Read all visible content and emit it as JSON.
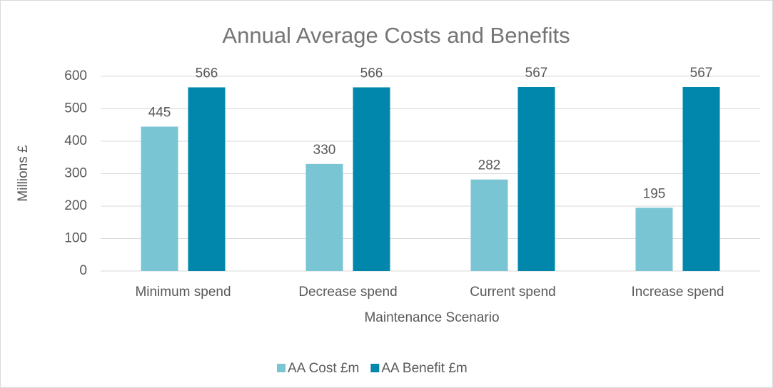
{
  "chart_data": {
    "type": "bar",
    "title": "Annual Average Costs and Benefits",
    "x_label": "Maintenance Scenario",
    "y_label": "Millions £",
    "categories": [
      "Minimum spend",
      "Decrease spend",
      "Current spend",
      "Increase spend"
    ],
    "series": [
      {
        "name": "AA Cost £m",
        "color": "#7ac5d4",
        "values": [
          445,
          330,
          282,
          195
        ]
      },
      {
        "name": "AA Benefit £m",
        "color": "#0087ab",
        "values": [
          566,
          566,
          567,
          567
        ]
      }
    ],
    "ylim": [
      0,
      600
    ],
    "yticks": [
      0,
      100,
      200,
      300,
      400,
      500,
      600
    ],
    "grid": true,
    "legend": "bottom"
  }
}
